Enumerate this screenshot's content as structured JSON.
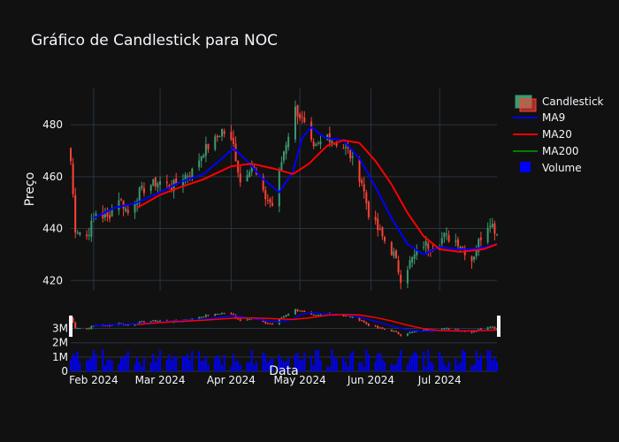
{
  "chart_data": {
    "type": "candlestick",
    "title": "Gráfico de Candlestick para NOC",
    "xlabel": "Data",
    "ylabel": "Preço",
    "x_range": [
      "2024-01-22",
      "2024-07-26"
    ],
    "xticks": [
      {
        "date": "2024-02-01",
        "label": "Feb 2024"
      },
      {
        "date": "2024-03-01",
        "label": "Mar 2024"
      },
      {
        "date": "2024-04-01",
        "label": "Apr 2024"
      },
      {
        "date": "2024-05-01",
        "label": "May 2024"
      },
      {
        "date": "2024-06-01",
        "label": "Jun 2024"
      },
      {
        "date": "2024-07-01",
        "label": "Jul 2024"
      }
    ],
    "price_axis": {
      "ylim": [
        416,
        494
      ],
      "ticks": [
        420,
        440,
        460,
        480
      ]
    },
    "volume_axis": {
      "ylim": [
        0,
        3.9
      ],
      "ticks": [
        0,
        1,
        2,
        3
      ],
      "tick_labels": [
        "0",
        "1M",
        "2M",
        "3M"
      ]
    },
    "grid": true,
    "legend_position": "top-right",
    "colors": {
      "increasing": "#3d9970",
      "decreasing": "#ff4136",
      "ma9": "#0000ff",
      "ma20": "#ff0000",
      "ma200": "#008000",
      "volume": "#0000ff"
    },
    "ohlc_anchor_closes": [
      [
        "2024-01-22",
        466
      ],
      [
        "2024-01-24",
        440
      ],
      [
        "2024-01-29",
        437
      ],
      [
        "2024-02-02",
        446
      ],
      [
        "2024-02-07",
        444
      ],
      [
        "2024-02-12",
        452
      ],
      [
        "2024-02-16",
        446
      ],
      [
        "2024-02-21",
        454
      ],
      [
        "2024-02-26",
        457
      ],
      [
        "2024-03-01",
        458
      ],
      [
        "2024-03-06",
        456
      ],
      [
        "2024-03-11",
        460
      ],
      [
        "2024-03-15",
        462
      ],
      [
        "2024-03-20",
        470
      ],
      [
        "2024-03-25",
        474
      ],
      [
        "2024-03-28",
        478
      ],
      [
        "2024-04-02",
        472
      ],
      [
        "2024-04-05",
        458
      ],
      [
        "2024-04-10",
        465
      ],
      [
        "2024-04-15",
        453
      ],
      [
        "2024-04-19",
        449
      ],
      [
        "2024-04-24",
        470
      ],
      [
        "2024-04-29",
        486
      ],
      [
        "2024-05-02",
        482
      ],
      [
        "2024-05-07",
        470
      ],
      [
        "2024-05-13",
        476
      ],
      [
        "2024-05-17",
        473
      ],
      [
        "2024-05-22",
        470
      ],
      [
        "2024-05-28",
        458
      ],
      [
        "2024-05-31",
        446
      ],
      [
        "2024-06-05",
        438
      ],
      [
        "2024-06-11",
        430
      ],
      [
        "2024-06-14",
        421
      ],
      [
        "2024-06-18",
        427
      ],
      [
        "2024-06-24",
        434
      ],
      [
        "2024-06-28",
        433
      ],
      [
        "2024-07-03",
        437
      ],
      [
        "2024-07-09",
        435
      ],
      [
        "2024-07-15",
        428
      ],
      [
        "2024-07-19",
        437
      ],
      [
        "2024-07-23",
        443
      ],
      [
        "2024-07-26",
        438
      ]
    ],
    "series": [
      {
        "name": "Candlestick",
        "type": "candlestick"
      },
      {
        "name": "MA9",
        "type": "line",
        "points": [
          [
            "2024-02-01",
            444
          ],
          [
            "2024-02-10",
            448
          ],
          [
            "2024-02-20",
            450
          ],
          [
            "2024-03-01",
            454
          ],
          [
            "2024-03-10",
            458
          ],
          [
            "2024-03-20",
            461
          ],
          [
            "2024-03-28",
            467
          ],
          [
            "2024-04-02",
            471
          ],
          [
            "2024-04-08",
            466
          ],
          [
            "2024-04-15",
            459
          ],
          [
            "2024-04-22",
            454
          ],
          [
            "2024-04-28",
            462
          ],
          [
            "2024-05-02",
            475
          ],
          [
            "2024-05-06",
            479
          ],
          [
            "2024-05-12",
            475
          ],
          [
            "2024-05-20",
            474
          ],
          [
            "2024-05-27",
            467
          ],
          [
            "2024-06-03",
            456
          ],
          [
            "2024-06-10",
            444
          ],
          [
            "2024-06-17",
            434
          ],
          [
            "2024-06-24",
            430
          ],
          [
            "2024-07-01",
            433
          ],
          [
            "2024-07-08",
            432
          ],
          [
            "2024-07-15",
            432
          ],
          [
            "2024-07-22",
            433
          ],
          [
            "2024-07-26",
            434
          ]
        ]
      },
      {
        "name": "MA20",
        "type": "line",
        "points": [
          [
            "2024-02-20",
            448
          ],
          [
            "2024-03-01",
            453
          ],
          [
            "2024-03-10",
            456
          ],
          [
            "2024-03-20",
            459
          ],
          [
            "2024-04-01",
            464
          ],
          [
            "2024-04-10",
            465
          ],
          [
            "2024-04-20",
            463
          ],
          [
            "2024-04-28",
            461
          ],
          [
            "2024-05-05",
            465
          ],
          [
            "2024-05-13",
            472
          ],
          [
            "2024-05-20",
            474
          ],
          [
            "2024-05-27",
            473
          ],
          [
            "2024-06-03",
            466
          ],
          [
            "2024-06-10",
            457
          ],
          [
            "2024-06-17",
            446
          ],
          [
            "2024-06-24",
            437
          ],
          [
            "2024-07-01",
            432
          ],
          [
            "2024-07-10",
            431
          ],
          [
            "2024-07-20",
            432
          ],
          [
            "2024-07-26",
            434
          ]
        ]
      },
      {
        "name": "MA200",
        "type": "line",
        "points": []
      },
      {
        "name": "Volume",
        "type": "bar"
      }
    ]
  }
}
